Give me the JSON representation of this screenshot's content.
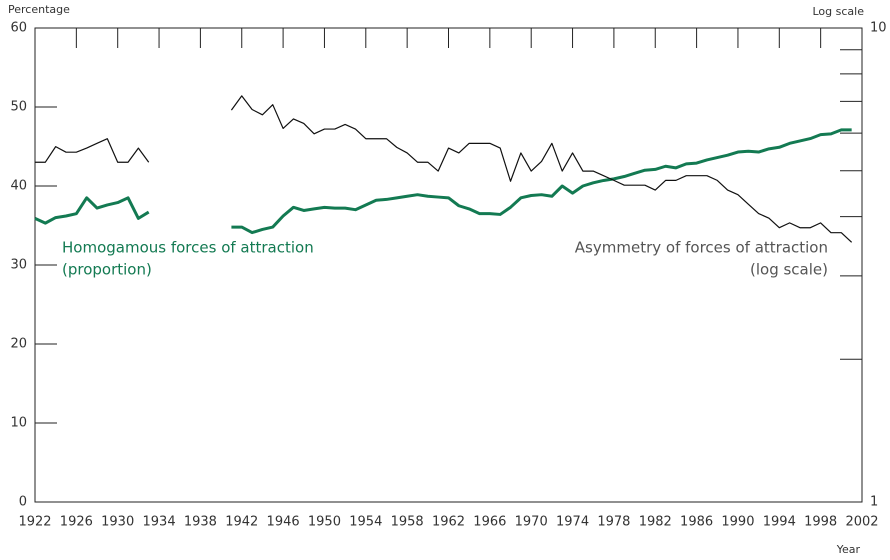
{
  "chart_data": {
    "type": "line",
    "ylabel": "Percentage",
    "y2label": "Log scale",
    "xlabel": "Year",
    "xlim": [
      1922,
      2002
    ],
    "xticks": [
      1922,
      1926,
      1930,
      1934,
      1938,
      1942,
      1946,
      1950,
      1954,
      1958,
      1962,
      1966,
      1970,
      1974,
      1978,
      1982,
      1986,
      1990,
      1994,
      1998,
      2002
    ],
    "ylim": [
      0,
      60
    ],
    "yticks": [
      0,
      10,
      20,
      30,
      40,
      50,
      60
    ],
    "y2lim": [
      1,
      10
    ],
    "y2ticks": [
      1,
      10
    ],
    "y2minorticks": [
      2,
      3,
      4,
      5,
      6,
      7,
      8,
      9
    ],
    "y2log": true,
    "x": [
      1922,
      1923,
      1924,
      1925,
      1926,
      1927,
      1928,
      1929,
      1930,
      1931,
      1932,
      1933,
      1934,
      1935,
      1936,
      1937,
      1938,
      1939,
      1940,
      1941,
      1942,
      1943,
      1944,
      1945,
      1946,
      1947,
      1948,
      1949,
      1950,
      1951,
      1952,
      1953,
      1954,
      1955,
      1956,
      1957,
      1958,
      1959,
      1960,
      1961,
      1962,
      1963,
      1964,
      1965,
      1966,
      1967,
      1968,
      1969,
      1970,
      1971,
      1972,
      1973,
      1974,
      1975,
      1976,
      1977,
      1978,
      1979,
      1980,
      1981,
      1982,
      1983,
      1984,
      1985,
      1986,
      1987,
      1988,
      1989,
      1990,
      1991,
      1992,
      1993,
      1994,
      1995,
      1996,
      1997,
      1998,
      1999,
      2000,
      2001
    ],
    "series": [
      {
        "name": "Homogamous forces of attraction",
        "name_line2": "(proportion)",
        "color": "#137a52",
        "axis": "y",
        "values": [
          35.9,
          35.3,
          36.0,
          36.2,
          36.5,
          38.5,
          37.2,
          37.6,
          37.9,
          38.5,
          35.9,
          36.7,
          null,
          null,
          null,
          null,
          null,
          null,
          null,
          34.8,
          34.8,
          34.1,
          34.5,
          34.8,
          36.2,
          37.3,
          36.9,
          37.1,
          37.3,
          37.2,
          37.2,
          37.0,
          37.6,
          38.2,
          38.3,
          38.5,
          38.7,
          38.9,
          38.7,
          38.6,
          38.5,
          37.5,
          37.1,
          36.5,
          36.5,
          36.4,
          37.3,
          38.5,
          38.8,
          38.9,
          38.7,
          40.0,
          39.1,
          40.0,
          40.4,
          40.7,
          40.9,
          41.2,
          41.6,
          42.0,
          42.1,
          42.5,
          42.3,
          42.8,
          42.9,
          43.3,
          43.6,
          43.9,
          44.3,
          44.4,
          44.3,
          44.7,
          44.9,
          45.4,
          45.7,
          46.0,
          46.5,
          46.6,
          47.1,
          47.1
        ]
      },
      {
        "name": "Asymmetry of forces of attraction",
        "name_line2": "(log scale)",
        "color": "#111111",
        "axis": "y2",
        "values": [
          5.21,
          5.21,
          5.62,
          5.47,
          5.47,
          5.58,
          5.71,
          5.84,
          5.21,
          5.21,
          5.58,
          5.21,
          null,
          null,
          null,
          null,
          null,
          null,
          null,
          6.71,
          7.19,
          6.73,
          6.56,
          6.89,
          6.14,
          6.43,
          6.29,
          5.98,
          6.12,
          6.12,
          6.26,
          6.12,
          5.84,
          5.84,
          5.84,
          5.6,
          5.45,
          5.21,
          5.21,
          4.99,
          5.58,
          5.45,
          5.71,
          5.71,
          5.71,
          5.58,
          4.75,
          5.45,
          4.99,
          5.23,
          5.71,
          4.99,
          5.45,
          4.99,
          4.99,
          4.88,
          4.77,
          4.66,
          4.66,
          4.66,
          4.55,
          4.77,
          4.77,
          4.88,
          4.88,
          4.88,
          4.77,
          4.55,
          4.45,
          4.25,
          4.06,
          3.97,
          3.79,
          3.88,
          3.79,
          3.79,
          3.88,
          3.7,
          3.7,
          3.53
        ]
      }
    ]
  }
}
